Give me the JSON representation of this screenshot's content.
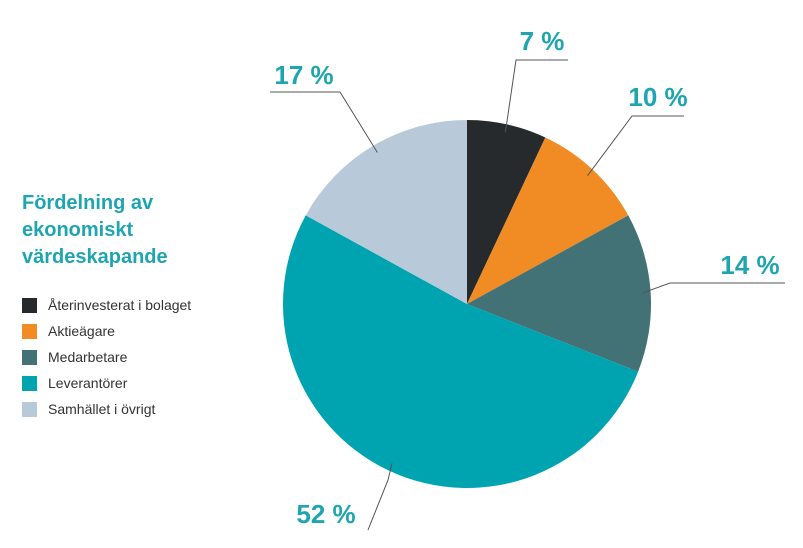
{
  "chart_data": {
    "type": "pie",
    "title": "Fördelning av ekonomiskt värdeskapande",
    "legend_position": "left",
    "start_angle": "12 o'clock, clockwise",
    "slices": [
      {
        "name": "Återinvesterat i bolaget",
        "value": 7,
        "label": "7 %",
        "color": "#272a2d"
      },
      {
        "name": "Aktieägare",
        "value": 10,
        "label": "10 %",
        "color": "#f08c23"
      },
      {
        "name": "Medarbetare",
        "value": 14,
        "label": "14 %",
        "color": "#437276"
      },
      {
        "name": "Leverantörer",
        "value": 52,
        "label": "52 %",
        "color": "#00a3b0"
      },
      {
        "name": "Samhället i övrigt",
        "value": 17,
        "label": "17 %",
        "color": "#b8c9d9"
      }
    ],
    "label_color": "#1fa5b0"
  }
}
